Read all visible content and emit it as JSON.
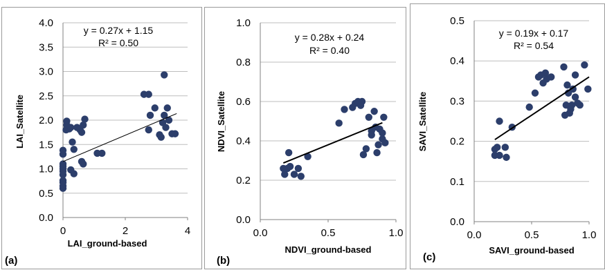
{
  "chart_data": [
    {
      "type": "scatter",
      "panel_label": "(a)",
      "xlabel": "LAI_ground-based",
      "ylabel": "LAI_Satellite",
      "xlim": [
        0,
        4
      ],
      "ylim": [
        0,
        4
      ],
      "xticks": [
        "0",
        "2",
        "4"
      ],
      "yticks": [
        "0.0",
        "0.5",
        "1.0",
        "1.5",
        "2.0",
        "2.5",
        "3.0",
        "3.5",
        "4.0"
      ],
      "grid": "horizontal",
      "marker_color": "#2c3e6b",
      "trendline": {
        "slope": 0.27,
        "intercept": 1.15,
        "x_range": [
          0,
          3.65
        ]
      },
      "equation": "y = 0.27x + 1.15",
      "r2": "R² = 0.50",
      "points": [
        [
          0.0,
          0.6
        ],
        [
          0.0,
          0.65
        ],
        [
          0.0,
          0.72
        ],
        [
          0.0,
          0.76
        ],
        [
          0.0,
          0.88
        ],
        [
          0.0,
          0.95
        ],
        [
          0.0,
          1.0
        ],
        [
          0.0,
          1.05
        ],
        [
          0.0,
          1.1
        ],
        [
          0.0,
          1.3
        ],
        [
          0.0,
          1.38
        ],
        [
          0.1,
          1.8
        ],
        [
          0.12,
          1.9
        ],
        [
          0.12,
          1.98
        ],
        [
          0.2,
          1.82
        ],
        [
          0.25,
          1.85
        ],
        [
          0.3,
          1.55
        ],
        [
          0.35,
          1.4
        ],
        [
          0.45,
          1.85
        ],
        [
          0.55,
          1.8
        ],
        [
          0.6,
          1.75
        ],
        [
          0.65,
          1.9
        ],
        [
          0.7,
          2.02
        ],
        [
          0.6,
          1.15
        ],
        [
          0.65,
          1.1
        ],
        [
          0.25,
          0.98
        ],
        [
          0.35,
          0.9
        ],
        [
          1.1,
          1.32
        ],
        [
          1.25,
          1.32
        ],
        [
          2.6,
          2.53
        ],
        [
          2.75,
          2.53
        ],
        [
          2.8,
          2.1
        ],
        [
          2.75,
          1.8
        ],
        [
          2.95,
          2.25
        ],
        [
          3.1,
          1.7
        ],
        [
          3.15,
          1.65
        ],
        [
          3.2,
          1.95
        ],
        [
          3.25,
          2.1
        ],
        [
          3.25,
          2.93
        ],
        [
          3.3,
          1.85
        ],
        [
          3.35,
          2.25
        ],
        [
          3.4,
          2.0
        ],
        [
          3.5,
          1.72
        ],
        [
          3.6,
          1.72
        ]
      ]
    },
    {
      "type": "scatter",
      "panel_label": "(b)",
      "xlabel": "NDVI_ground-based",
      "ylabel": "NDVI_Satellite",
      "xlim": [
        0,
        1
      ],
      "ylim": [
        0,
        1
      ],
      "xticks": [
        "0.0",
        "0.5",
        "1.0"
      ],
      "yticks": [
        "0.0",
        "0.2",
        "0.4",
        "0.6",
        "0.8",
        "1.0"
      ],
      "grid": "horizontal",
      "marker_color": "#2c3e6b",
      "trendline": {
        "slope": 0.28,
        "intercept": 0.24,
        "x_range": [
          0.17,
          0.9
        ]
      },
      "equation": "y = 0.28x + 0.24",
      "r2": "R² = 0.40",
      "points": [
        [
          0.17,
          0.26
        ],
        [
          0.18,
          0.23
        ],
        [
          0.2,
          0.26
        ],
        [
          0.21,
          0.34
        ],
        [
          0.22,
          0.27
        ],
        [
          0.25,
          0.23
        ],
        [
          0.28,
          0.26
        ],
        [
          0.3,
          0.22
        ],
        [
          0.35,
          0.32
        ],
        [
          0.58,
          0.49
        ],
        [
          0.62,
          0.56
        ],
        [
          0.68,
          0.57
        ],
        [
          0.7,
          0.59
        ],
        [
          0.72,
          0.6
        ],
        [
          0.75,
          0.6
        ],
        [
          0.74,
          0.58
        ],
        [
          0.76,
          0.33
        ],
        [
          0.78,
          0.36
        ],
        [
          0.8,
          0.52
        ],
        [
          0.82,
          0.45
        ],
        [
          0.82,
          0.43
        ],
        [
          0.84,
          0.55
        ],
        [
          0.85,
          0.47
        ],
        [
          0.86,
          0.34
        ],
        [
          0.87,
          0.38
        ],
        [
          0.88,
          0.46
        ],
        [
          0.9,
          0.41
        ],
        [
          0.9,
          0.44
        ],
        [
          0.91,
          0.52
        ],
        [
          0.92,
          0.39
        ]
      ]
    },
    {
      "type": "scatter",
      "panel_label": "(c)",
      "xlabel": "SAVI_ground-based",
      "ylabel": "SAVI_Satellite",
      "xlim": [
        0,
        1
      ],
      "ylim": [
        0,
        0.5
      ],
      "xticks": [
        "0.0",
        "0.5",
        "1.0"
      ],
      "yticks": [
        "0.0",
        "0.1",
        "0.2",
        "0.3",
        "0.4",
        "0.5"
      ],
      "grid": "horizontal",
      "marker_color": "#2c3e6b",
      "trendline": {
        "slope": 0.19,
        "intercept": 0.17,
        "x_range": [
          0.18,
          1.0
        ]
      },
      "equation": "y = 0.19x + 0.17",
      "r2": "R² = 0.54",
      "points": [
        [
          0.18,
          0.18
        ],
        [
          0.18,
          0.165
        ],
        [
          0.2,
          0.185
        ],
        [
          0.22,
          0.165
        ],
        [
          0.22,
          0.25
        ],
        [
          0.27,
          0.185
        ],
        [
          0.28,
          0.16
        ],
        [
          0.33,
          0.235
        ],
        [
          0.48,
          0.285
        ],
        [
          0.53,
          0.32
        ],
        [
          0.56,
          0.36
        ],
        [
          0.58,
          0.365
        ],
        [
          0.6,
          0.345
        ],
        [
          0.62,
          0.37
        ],
        [
          0.63,
          0.355
        ],
        [
          0.67,
          0.36
        ],
        [
          0.78,
          0.385
        ],
        [
          0.79,
          0.265
        ],
        [
          0.8,
          0.29
        ],
        [
          0.81,
          0.34
        ],
        [
          0.82,
          0.32
        ],
        [
          0.83,
          0.27
        ],
        [
          0.84,
          0.28
        ],
        [
          0.85,
          0.29
        ],
        [
          0.86,
          0.33
        ],
        [
          0.88,
          0.365
        ],
        [
          0.88,
          0.31
        ],
        [
          0.9,
          0.295
        ],
        [
          0.92,
          0.29
        ],
        [
          0.96,
          0.39
        ],
        [
          0.99,
          0.33
        ]
      ]
    }
  ]
}
